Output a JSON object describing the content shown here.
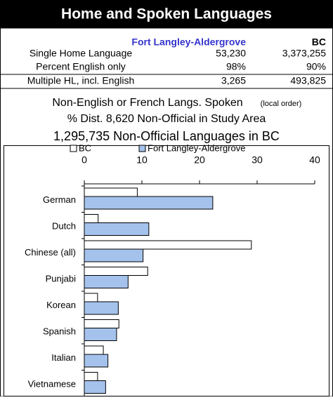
{
  "header": {
    "title": "Home and Spoken Languages"
  },
  "table": {
    "columns": [
      "Fort Langley-Aldergrove",
      "BC"
    ],
    "rows": [
      [
        "Single Home Language",
        "53,230",
        "3,373,255"
      ],
      [
        "Percent English only",
        "98%",
        "90%"
      ],
      [
        "Multiple HL, incl. English",
        "3,265",
        "493,825"
      ]
    ]
  },
  "notes": {
    "line1": "Non-English or French Langs. Spoken",
    "line1_small": "(local order)",
    "line2": "% Dist. 8,620 Non-Official in Study Area",
    "line3": "1,295,735 Non-Official Languages in BC"
  },
  "chart_data": {
    "type": "bar",
    "orientation": "horizontal",
    "categories": [
      "German",
      "Dutch",
      "Chinese (all)",
      "Punjabi",
      "Korean",
      "Spanish",
      "Italian",
      "Vietnamese"
    ],
    "series": [
      {
        "name": "BC",
        "color": "#ffffff",
        "values": [
          9.2,
          2.4,
          29.0,
          11.0,
          2.3,
          6.0,
          3.3,
          2.3
        ]
      },
      {
        "name": "Fort Langley-Aldergrove",
        "color": "#a4c2ec",
        "values": [
          22.3,
          11.2,
          10.2,
          7.6,
          5.9,
          5.6,
          4.1,
          3.7
        ]
      }
    ],
    "xlim": [
      0,
      40
    ],
    "xticks": [
      0,
      10,
      20,
      30,
      40
    ],
    "legend": "top"
  }
}
